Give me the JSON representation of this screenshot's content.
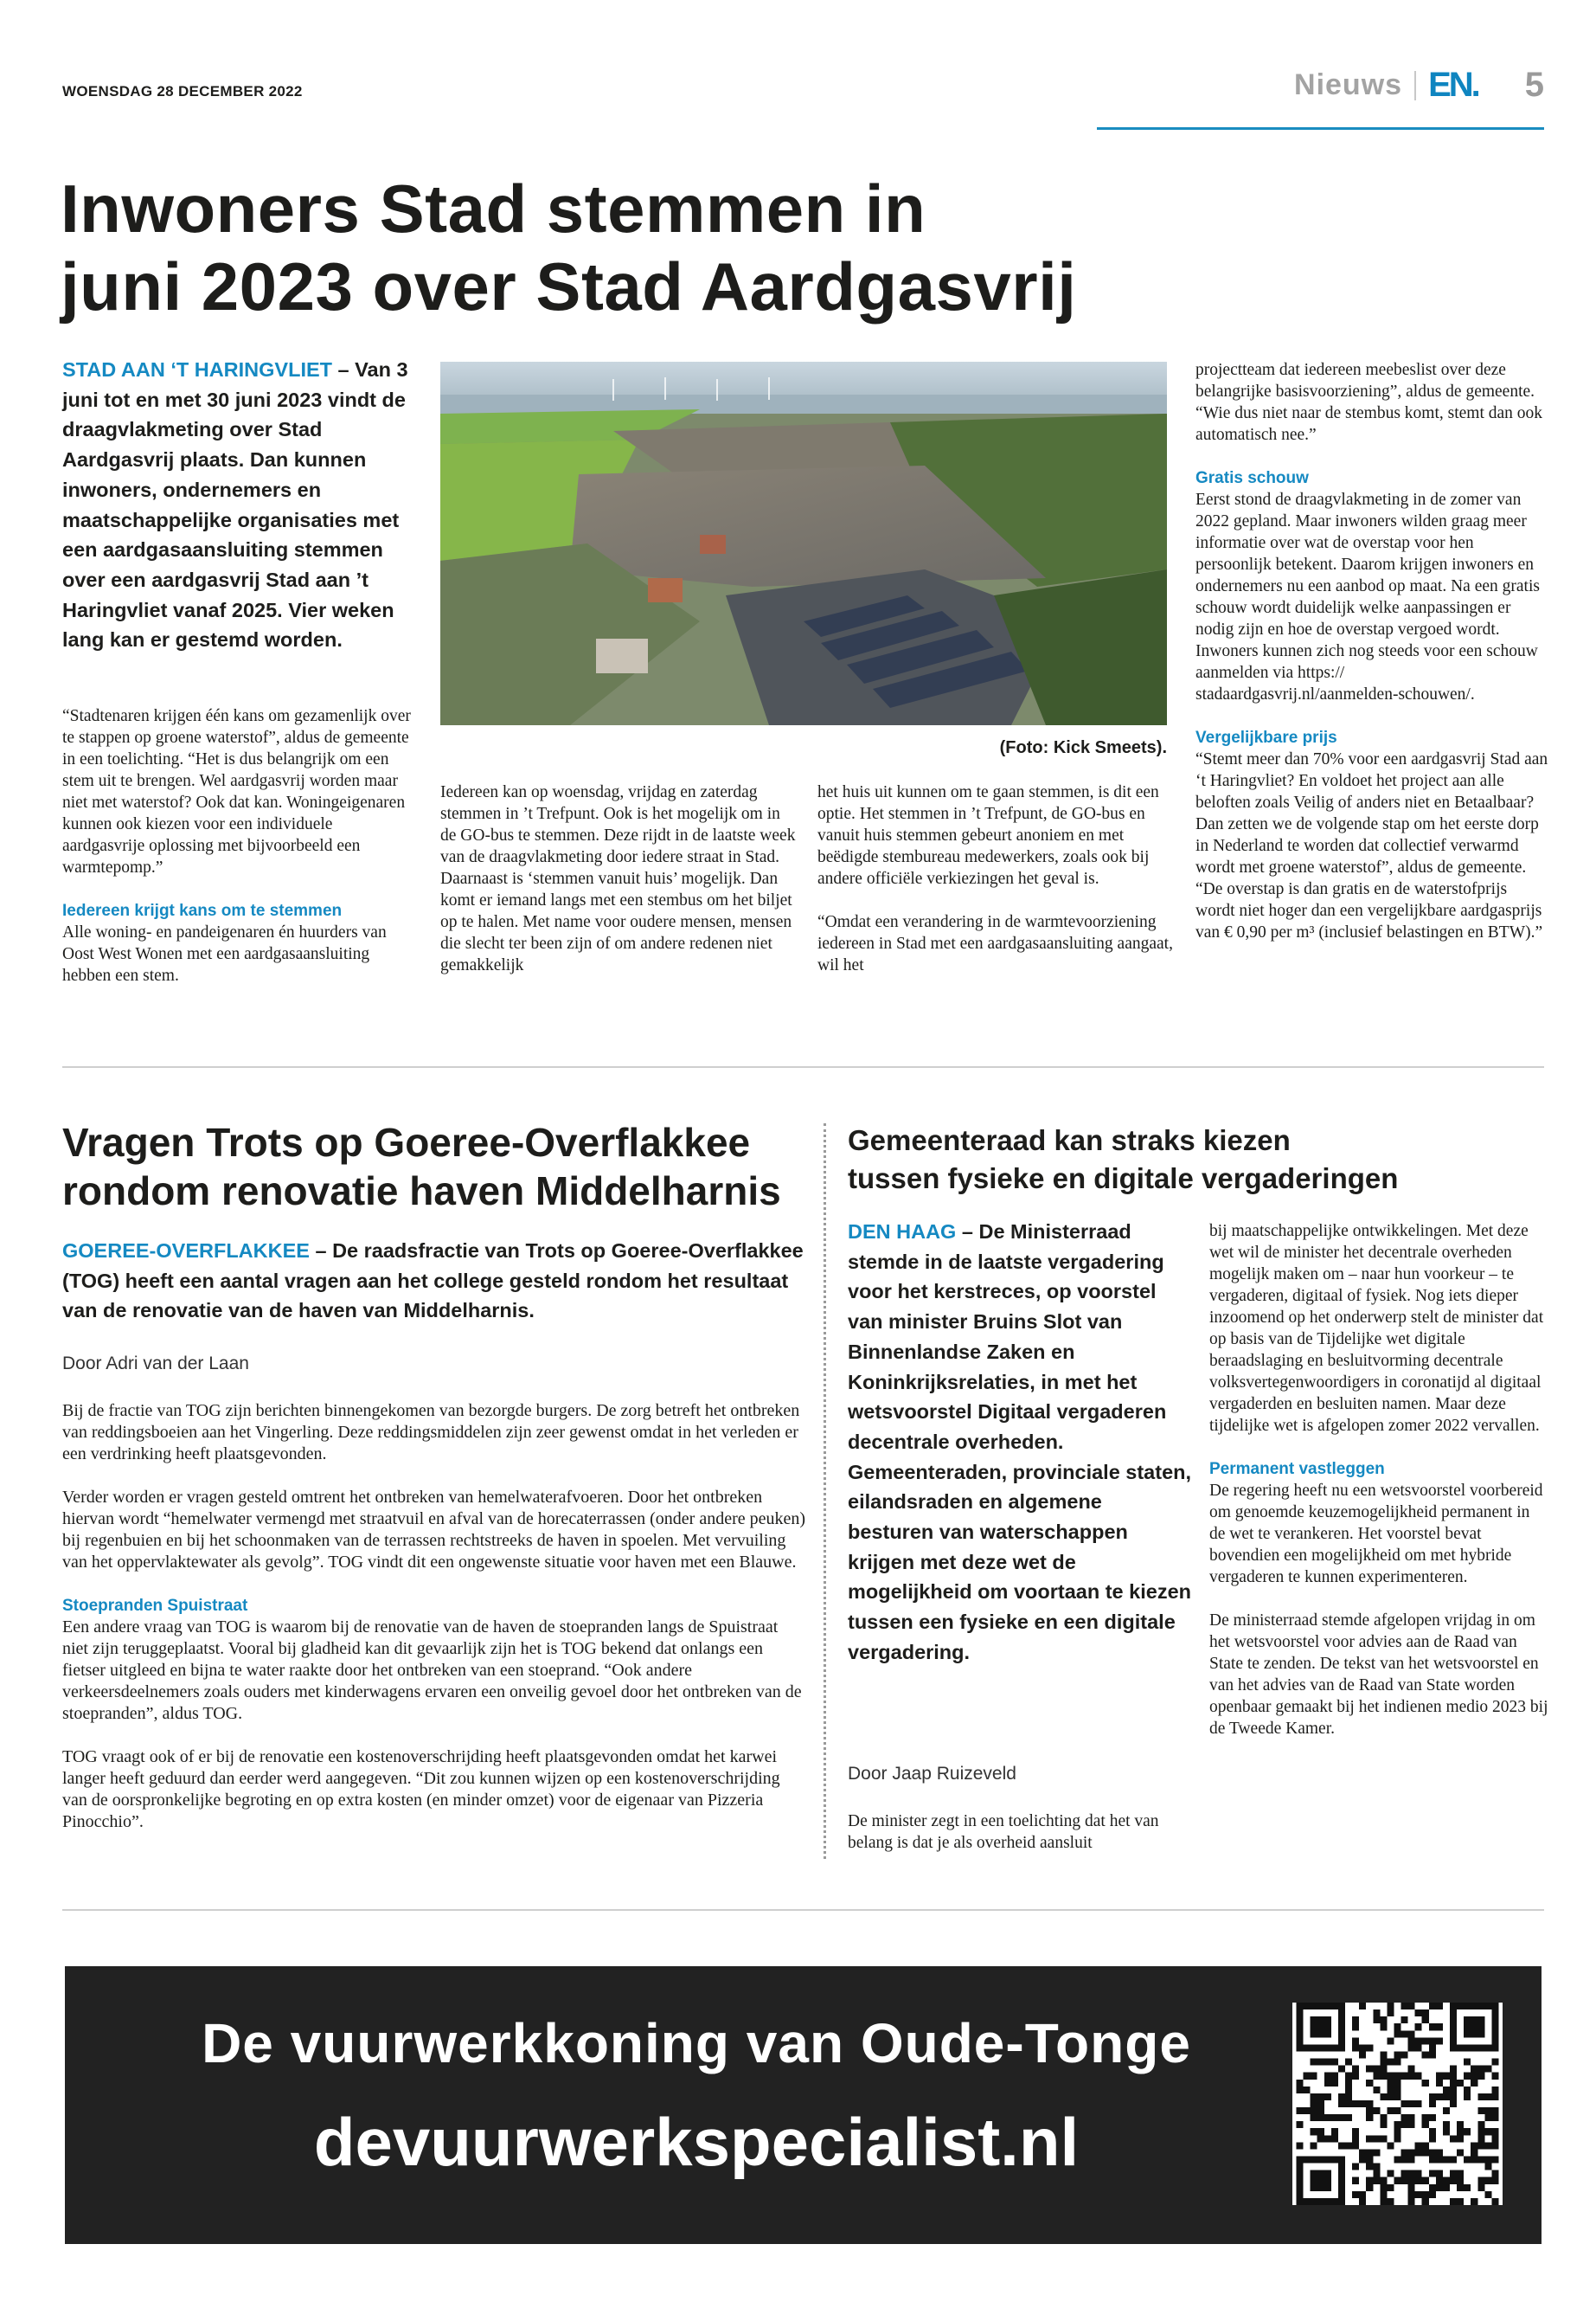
{
  "header": {
    "date": "WOENSDAG 28 DECEMBER 2022",
    "section": "Nieuws",
    "logo": "EN.",
    "page_number": "5",
    "accent_color": "#1589c2"
  },
  "article1": {
    "headline_line1": "Inwoners Stad stemmen in",
    "headline_line2": "juni 2023 over Stad Aardgasvrij",
    "kicker": "STAD AAN ‘T HARINGVLIET",
    "lead": " – Van 3 juni tot en met 30 juni 2023 vindt de draagvlakmeting over Stad Aardgasvrij plaats. Dan kunnen inwoners, ondernemers en maatschappelijke organisaties met een aardgasaansluiting stemmen over een aardgasvrij Stad aan ’t Haringvliet vanaf 2025. Vier weken lang kan er gestemd worden.",
    "col1_p1": "“Stadtenaren krijgen één kans om gezamenlijk over te stappen op groene waterstof”, aldus de gemeente in een toelichting. “Het is dus belangrijk om een stem uit te brengen. Wel aardgasvrij worden maar niet met waterstof? Ook dat kan. Woningeigenaren kunnen ook kiezen voor een individuele aardgasvrije oplossing met bijvoorbeeld een warmtepomp.”",
    "sub1": "Iedereen krijgt kans om te stemmen",
    "col1_p2": "Alle woning- en pandeigenaren én huurders van Oost West Wonen met een aardgasaansluiting hebben een stem.",
    "photo_caption": "(Foto: Kick Smeets).",
    "col2_p1": "Iedereen kan op woensdag, vrijdag en zaterdag stemmen in ’t Trefpunt. Ook is het mogelijk om in de GO-bus te stemmen. Deze rijdt in de laatste week van de draagvlakmeting door iedere straat in Stad. Daarnaast is ‘stemmen vanuit huis’ mogelijk. Dan komt er iemand langs met een stembus om het biljet op te halen. Met name voor oudere mensen, mensen die slecht ter been zijn of om andere redenen niet gemakkelijk",
    "col3_p1": "het huis uit kunnen om te gaan stemmen, is dit een optie. Het stemmen in ’t Trefpunt, de GO-bus en vanuit huis stemmen gebeurt anoniem en met beëdigde stembureau medewerkers, zoals ook bij andere officiële verkiezingen het geval is.",
    "col3_p2": "“Omdat een verandering in de warmtevoorziening iedereen in Stad met een aardgasaansluiting aangaat, wil het",
    "col4_p1": "projectteam dat iedereen meebeslist over deze belangrijke basisvoorziening”, aldus de gemeente. “Wie dus niet naar de stembus komt, stemt dan ook automatisch nee.”",
    "sub2": "Gratis schouw",
    "col4_p2": "Eerst stond de draagvlakmeting in de zomer van 2022 gepland. Maar inwoners wilden graag meer informatie over wat de overstap voor hen persoonlijk betekent. Daarom krijgen inwoners en ondernemers nu een aanbod op maat. Na een gratis schouw wordt duidelijk welke aanpassingen er nodig zijn en hoe de overstap vergoed wordt. Inwoners kunnen zich nog steeds voor een schouw aanmelden via https:// stadaardgasvrij.nl/aanmelden-schouwen/.",
    "sub3": "Vergelijkbare prijs",
    "col4_p3": "“Stemt meer dan 70% voor een aardgasvrij Stad aan ‘t Haringvliet? En voldoet het project aan alle beloften zoals Veilig of anders niet en Betaalbaar? Dan zetten we de volgende stap om het eerste dorp in Nederland te worden dat collectief verwarmd wordt met groene waterstof”, aldus de gemeente. “De overstap is dan gratis en de waterstofprijs wordt niet hoger dan een vergelijkbare aardgasprijs van € 0,90 per m³ (inclusief belastingen en BTW).”"
  },
  "article2": {
    "headline_line1": "Vragen Trots op Goeree-Overflakkee",
    "headline_line2": "rondom renovatie haven Middelharnis",
    "kicker": "GOEREE-OVERFLAKKEE",
    "lead": " – De raadsfractie van Trots op Goeree-Overflakkee (TOG) heeft een aantal vragen aan het college gesteld rondom het resultaat van de renovatie van de haven van Middelharnis.",
    "byline": "Door Adri van der Laan",
    "p1": "Bij de fractie van TOG zijn berichten binnengekomen van bezorgde burgers. De zorg betreft het ontbreken van reddingsboeien aan het Vingerling. Deze reddingsmiddelen zijn zeer gewenst omdat in het verleden er een verdrinking heeft plaatsgevonden.",
    "p2": "Verder worden er vragen gesteld omtrent het ontbreken van hemelwaterafvoeren. Door het ontbreken hiervan wordt “hemelwater vermengd met straatvuil en afval van de horecaterrassen (onder andere peuken) bij regenbuien en bij het schoonmaken van de terrassen rechtstreeks de haven in spoelen. Met vervuiling van het oppervlaktewater als gevolg”. TOG vindt dit een ongewenste situatie voor haven met een Blauwe.",
    "sub": "Stoepranden Spuistraat",
    "p3": "Een andere vraag van TOG is waarom bij de renovatie van de haven de stoepranden langs de Spuistraat niet zijn teruggeplaatst. Vooral bij gladheid kan dit gevaarlijk zijn het is TOG bekend dat onlangs een fietser uitgleed en bijna te water raakte door het ontbreken van een stoeprand. “Ook andere verkeersdeelnemers zoals ouders met kinderwagens ervaren een onveilig gevoel door het ontbreken van de stoepranden”, aldus TOG.",
    "p4": "TOG vraagt ook of er bij de renovatie een kostenoverschrijding heeft plaatsgevonden omdat het karwei langer heeft geduurd dan eerder werd aangegeven. “Dit zou kunnen wijzen op een kostenoverschrijding van de oorspronkelijke begroting en op extra kosten (en minder omzet) voor de eigenaar van Pizzeria Pinocchio”."
  },
  "article3": {
    "headline_line1": "Gemeenteraad kan straks kiezen",
    "headline_line2": "tussen fysieke en digitale vergaderingen",
    "kicker": "DEN HAAG",
    "lead": " – De Ministerraad stemde in de laatste vergadering voor het kerstreces, op voorstel van minister Bruins Slot van Binnenlandse Zaken en Koninkrijksrelaties, in met het wetsvoorstel Digitaal vergaderen decentrale overheden. Gemeenteraden, provinciale staten, eilandsraden en algemene besturen van waterschappen krijgen met deze wet de mogelijkheid om voortaan te kiezen tussen een fysieke en een digitale vergadering.",
    "byline": "Door Jaap Ruizeveld",
    "p1": "De minister zegt in een toelichting dat het van belang is dat je als overheid aansluit",
    "p2": "bij maatschappelijke ontwikkelingen. Met deze wet wil de minister het decentrale overheden mogelijk maken om – naar hun voorkeur – te vergaderen, digitaal of fysiek. Nog iets dieper inzoomend op het onderwerp stelt de minister dat op basis van de Tijdelijke wet digitale beraadslaging en besluitvorming decentrale volksvertegenwoordigers in coronatijd al digitaal vergaderden en besluiten namen. Maar deze tijdelijke wet is afgelopen zomer 2022 vervallen.",
    "sub": "Permanent vastleggen",
    "p3": "De regering heeft nu een wetsvoorstel voorbereid om genoemde keuzemogelijkheid permanent in de wet te verankeren. Het voorstel bevat bovendien een mogelijkheid om met hybride vergaderen te kunnen experimenteren.",
    "p4": "De ministerraad stemde afgelopen vrijdag in om het wetsvoorstel voor advies aan de Raad van State te zenden. De tekst van het wetsvoorstel en van het advies van de Raad van State worden openbaar gemaakt bij het indienen medio 2023 bij de Tweede Kamer."
  },
  "ad": {
    "line1": "De vuurwerkkoning van Oude-Tonge",
    "line2": "devuurwerkspecialist.nl",
    "background": "#222222"
  }
}
